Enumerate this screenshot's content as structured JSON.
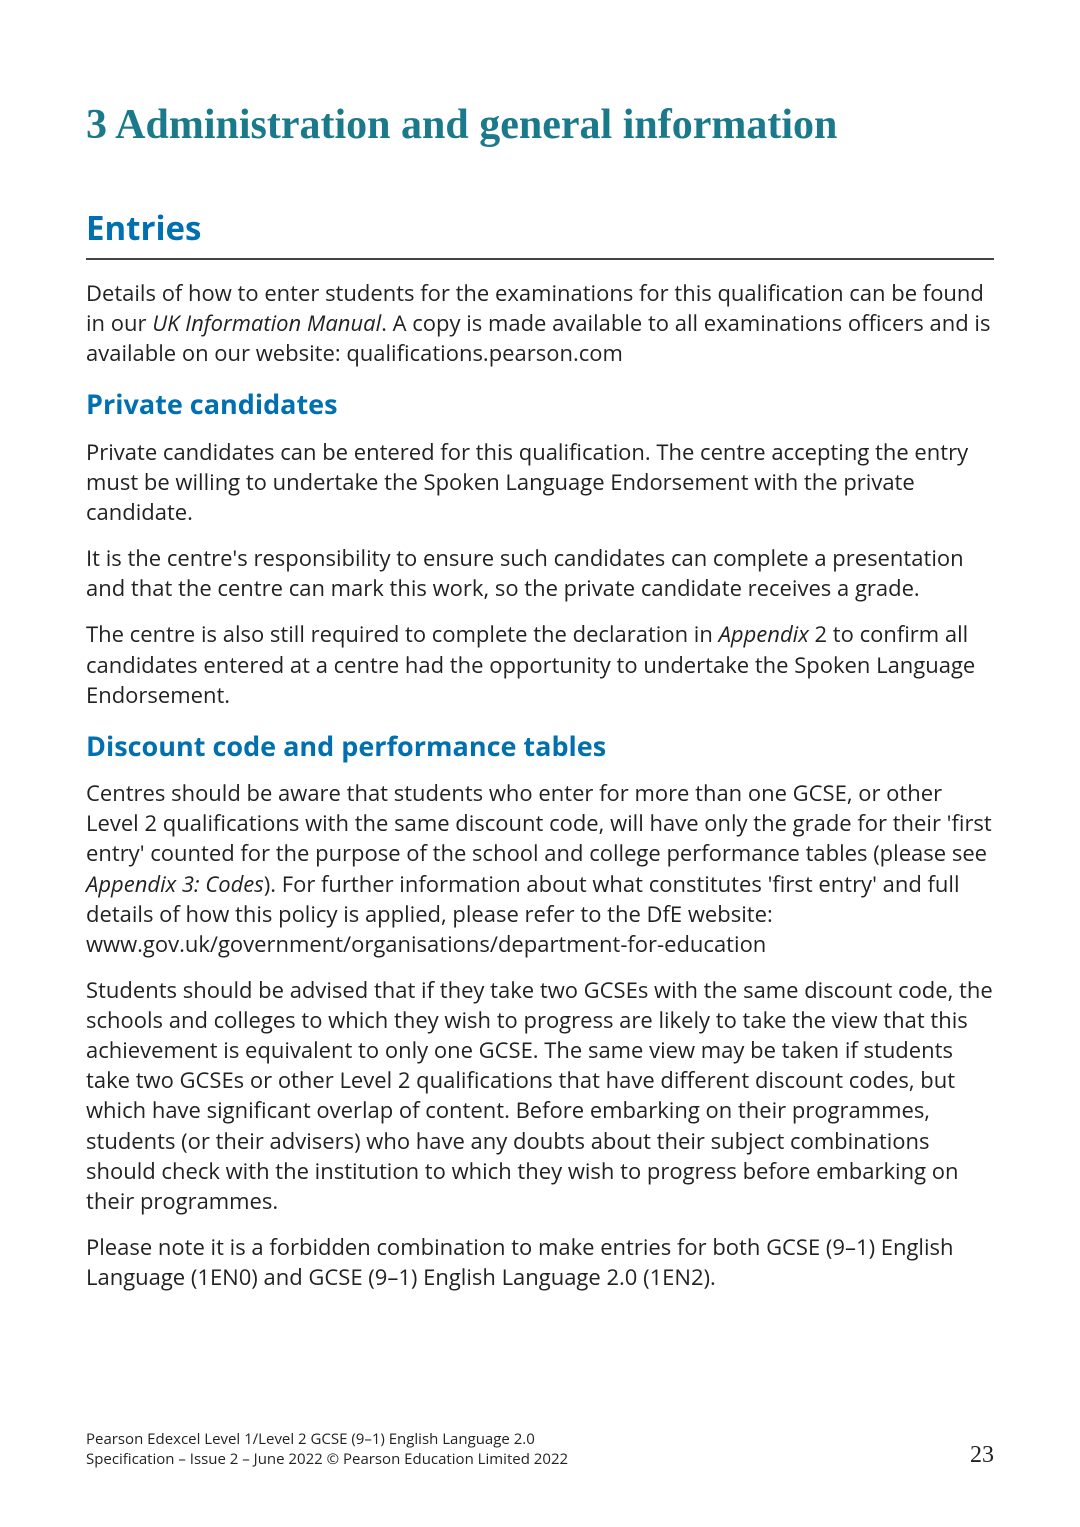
{
  "colors": {
    "h1": "#1a7a8c",
    "h2_h3": "#0070b0",
    "text": "#222222",
    "rule": "#444444",
    "background": "#ffffff"
  },
  "typography": {
    "h1_family": "Georgia serif",
    "h1_size_pt": 32,
    "h2_size_pt": 25,
    "h3_size_pt": 20,
    "body_size_pt": 16,
    "footer_size_pt": 11
  },
  "heading": {
    "number": "3",
    "title": "Administration and general information",
    "full": "3  Administration and general information"
  },
  "sections": {
    "entries": {
      "title": "Entries",
      "p1_a": "Details of how to enter students for the examinations for this qualification can be found in our ",
      "p1_em": "UK Information Manual",
      "p1_b": ". A copy is made available to all examinations officers and is available on our website: qualifications.pearson.com"
    },
    "private": {
      "title": "Private candidates",
      "p1": "Private candidates can be entered for this qualification. The centre accepting the entry must be willing to undertake the Spoken Language Endorsement with the private candidate.",
      "p2": "It is the centre's responsibility to ensure such candidates can complete a presentation and that the centre can mark this work, so the private candidate receives a grade.",
      "p3_a": "The centre is also still required to complete the declaration in ",
      "p3_em": "Appendix",
      "p3_b": " 2 to confirm all candidates entered at a centre had the opportunity to undertake the Spoken Language Endorsement."
    },
    "discount": {
      "title": "Discount code and performance tables",
      "p1_a": "Centres should be aware that students who enter for more than one GCSE, or other Level 2 qualifications with the same discount code, will have only the grade for their 'first entry' counted for the purpose of the school and college performance tables (please see ",
      "p1_em": "Appendix 3: Codes",
      "p1_b": "). For further information about what constitutes 'first entry' and full details of how this policy is applied, please refer to the DfE website: www.gov.uk/government/organisations/department-for-education",
      "p2": "Students should be advised that if they take two GCSEs with the same discount code, the schools and colleges to which they wish to progress are likely to take the view that this achievement is equivalent to only one GCSE. The same view may be taken if students take two GCSEs or other Level 2 qualifications that have different discount codes, but which have significant overlap of content. Before embarking on their programmes, students (or their advisers) who have any doubts about their subject combinations should check with the institution to which they wish to progress before embarking on their programmes.",
      "p3": "Please note it is a forbidden combination to make entries for both GCSE (9–1) English Language (1EN0) and GCSE (9–1) English Language 2.0 (1EN2)."
    }
  },
  "footer": {
    "line1": "Pearson Edexcel Level 1/Level 2 GCSE (9–1) English Language 2.0",
    "line2": "Specification – Issue 2 – June 2022 © Pearson Education Limited 2022",
    "page_number": "23"
  }
}
